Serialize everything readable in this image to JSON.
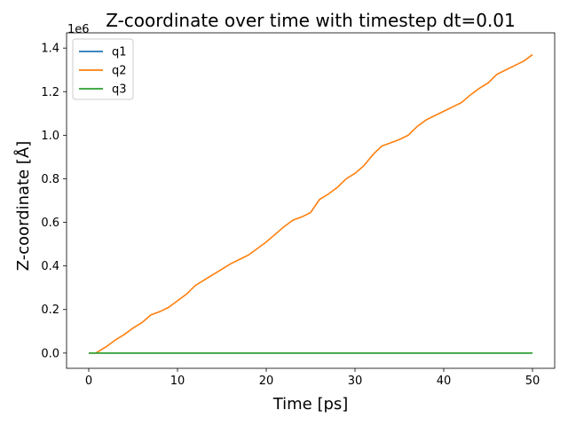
{
  "chart_data": {
    "type": "line",
    "title": "Z-coordinate over time with timestep dt=0.01",
    "xlabel": "Time [ps]",
    "ylabel": "Z-coordinate [Å]",
    "y_offset_label": "1e6",
    "xlim": [
      -2.5,
      52.5
    ],
    "ylim": [
      -0.07,
      1.47
    ],
    "xticks": [
      0,
      10,
      20,
      30,
      40,
      50
    ],
    "xtick_labels": [
      "0",
      "10",
      "20",
      "30",
      "40",
      "50"
    ],
    "yticks": [
      0.0,
      0.2,
      0.4,
      0.6,
      0.8,
      1.0,
      1.2,
      1.4
    ],
    "ytick_labels": [
      "0.0",
      "0.2",
      "0.4",
      "0.6",
      "0.8",
      "1.0",
      "1.2",
      "1.4"
    ],
    "y_units_multiplier": 1000000,
    "grid": false,
    "legend": "upper-left",
    "series": [
      {
        "name": "q1",
        "color": "#1f77b4",
        "x": [
          0,
          50
        ],
        "y": [
          0,
          0
        ]
      },
      {
        "name": "q2",
        "color": "#ff7f0e",
        "x": [
          0,
          0.8,
          1,
          2,
          3,
          4,
          5,
          6,
          7,
          8,
          9,
          10,
          11,
          12,
          13,
          14,
          15,
          16,
          17,
          18,
          19,
          20,
          21,
          22,
          23,
          24,
          25,
          26,
          27,
          28,
          29,
          30,
          31,
          32,
          33,
          34,
          35,
          36,
          37,
          38,
          39,
          40,
          41,
          42,
          43,
          44,
          45,
          46,
          47,
          48,
          49,
          50
        ],
        "y": [
          0.0,
          0.0,
          0.005,
          0.03,
          0.06,
          0.085,
          0.115,
          0.14,
          0.175,
          0.19,
          0.21,
          0.24,
          0.27,
          0.31,
          0.335,
          0.36,
          0.385,
          0.41,
          0.43,
          0.45,
          0.48,
          0.51,
          0.545,
          0.58,
          0.61,
          0.625,
          0.645,
          0.705,
          0.73,
          0.76,
          0.8,
          0.825,
          0.86,
          0.91,
          0.95,
          0.965,
          0.98,
          1.0,
          1.04,
          1.07,
          1.09,
          1.11,
          1.13,
          1.15,
          1.185,
          1.215,
          1.24,
          1.28,
          1.3,
          1.32,
          1.34,
          1.37
        ]
      },
      {
        "name": "q3",
        "color": "#2ca02c",
        "x": [
          0,
          50
        ],
        "y": [
          0,
          0
        ]
      }
    ]
  }
}
